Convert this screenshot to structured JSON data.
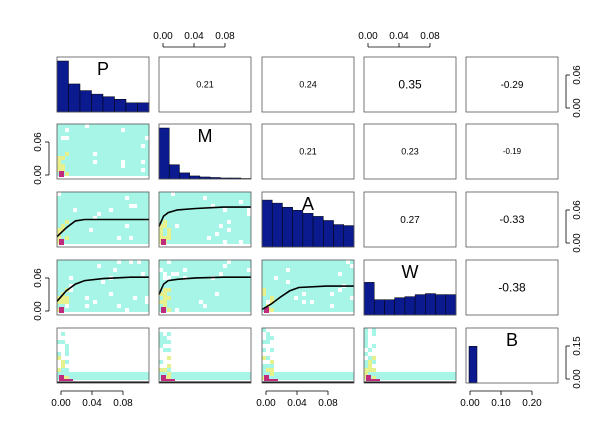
{
  "chart_data": {
    "type": "scatter-matrix",
    "variables": [
      "P",
      "M",
      "A",
      "W",
      "B"
    ],
    "grid": false,
    "panels": {
      "diagonal": "histogram",
      "lower": "density scatter with smooth line",
      "upper": "correlation coefficient"
    },
    "correlations": [
      {
        "row": 1,
        "col": 2,
        "value": "0.21"
      },
      {
        "row": 1,
        "col": 3,
        "value": "0.24"
      },
      {
        "row": 1,
        "col": 4,
        "value": "0.35"
      },
      {
        "row": 1,
        "col": 5,
        "value": "-0.29"
      },
      {
        "row": 2,
        "col": 3,
        "value": "0.21"
      },
      {
        "row": 2,
        "col": 4,
        "value": "0.23"
      },
      {
        "row": 2,
        "col": 5,
        "value": "-0.19"
      },
      {
        "row": 3,
        "col": 4,
        "value": "0.27"
      },
      {
        "row": 3,
        "col": 5,
        "value": "-0.33"
      },
      {
        "row": 4,
        "col": 5,
        "value": "-0.38"
      }
    ],
    "histograms": {
      "P": [
        1.0,
        0.55,
        0.42,
        0.35,
        0.3,
        0.25,
        0.18,
        0.18
      ],
      "M": [
        1.0,
        0.28,
        0.12,
        0.06,
        0.04,
        0.03,
        0.02,
        0.02,
        0.01
      ],
      "A": [
        0.92,
        0.86,
        0.78,
        0.72,
        0.66,
        0.6,
        0.52,
        0.44,
        0.42
      ],
      "W": [
        0.64,
        0.3,
        0.3,
        0.34,
        0.36,
        0.4,
        0.42,
        0.4,
        0.4
      ],
      "B": [
        0.72
      ]
    },
    "smooth_lines": {
      "P-M": {
        "x": [
          0,
          0.01,
          0.02,
          0.04,
          0.06,
          0.08,
          0.1
        ],
        "y": [
          0,
          0.004,
          0.007,
          0.01,
          0.011,
          0.012,
          0.012
        ]
      },
      "A-P": {
        "x": [
          0,
          0.01,
          0.02,
          0.03,
          0.05,
          0.08,
          0.1
        ],
        "y": [
          0.015,
          0.028,
          0.038,
          0.04,
          0.04,
          0.04,
          0.04
        ]
      },
      "A-M": {
        "x": [
          0,
          0.005,
          0.01,
          0.02,
          0.04,
          0.07,
          0.1
        ],
        "y": [
          0.03,
          0.045,
          0.05,
          0.054,
          0.056,
          0.058,
          0.058
        ]
      },
      "W-P": {
        "x": [
          0,
          0.01,
          0.02,
          0.03,
          0.05,
          0.08,
          0.1
        ],
        "y": [
          0.02,
          0.035,
          0.045,
          0.05,
          0.053,
          0.055,
          0.055
        ]
      },
      "W-M": {
        "x": [
          0,
          0.005,
          0.01,
          0.02,
          0.04,
          0.07,
          0.1
        ],
        "y": [
          0.03,
          0.045,
          0.05,
          0.052,
          0.054,
          0.055,
          0.055
        ]
      },
      "W-A": {
        "x": [
          0,
          0.01,
          0.02,
          0.03,
          0.04,
          0.07,
          0.1
        ],
        "y": [
          0.008,
          0.016,
          0.026,
          0.035,
          0.04,
          0.042,
          0.042
        ]
      },
      "B-P": {
        "x": [
          0,
          0.02,
          0.05,
          0.1
        ],
        "y": [
          0.001,
          0.001,
          0.001,
          0.001
        ]
      },
      "B-M": {
        "x": [
          0,
          0.02,
          0.05,
          0.1
        ],
        "y": [
          0.001,
          0.001,
          0.001,
          0.001
        ]
      },
      "B-A": {
        "x": [
          0,
          0.02,
          0.05,
          0.1
        ],
        "y": [
          0.001,
          0.001,
          0.001,
          0.001
        ]
      },
      "B-W": {
        "x": [
          0,
          0.02,
          0.05,
          0.1
        ],
        "y": [
          0.001,
          0.001,
          0.001,
          0.001
        ]
      }
    },
    "axes": {
      "top": [
        {
          "col": 2,
          "ticks": [
            "0.00",
            "0.04",
            "0.08"
          ]
        },
        {
          "col": 4,
          "ticks": [
            "0.00",
            "0.04",
            "0.08"
          ]
        }
      ],
      "bottom": [
        {
          "col": 1,
          "ticks": [
            "0.00",
            "0.04",
            "0.08"
          ]
        },
        {
          "col": 3,
          "ticks": [
            "0.00",
            "0.04",
            "0.08"
          ]
        },
        {
          "col": 5,
          "ticks": [
            "0.00",
            "0.10",
            "0.20"
          ]
        }
      ],
      "left": [
        {
          "row": 2,
          "ticks": [
            "0.00",
            "0.06"
          ]
        },
        {
          "row": 4,
          "ticks": [
            "0.00",
            "0.06"
          ]
        }
      ],
      "right": [
        {
          "row": 1,
          "ticks": [
            "0.00",
            "0.06"
          ]
        },
        {
          "row": 3,
          "ticks": [
            "0.00",
            "0.06"
          ]
        },
        {
          "row": 5,
          "ticks": [
            "0.00",
            "0.15"
          ]
        }
      ]
    },
    "colors": {
      "histogram_fill": "#0b1b8f",
      "histogram_stroke": "#000000",
      "density_low": "#a6f5e6",
      "density_mid": "#e6f08c",
      "density_high": "#c02a7c",
      "smooth_line": "#000000",
      "frame": "#555555"
    }
  }
}
